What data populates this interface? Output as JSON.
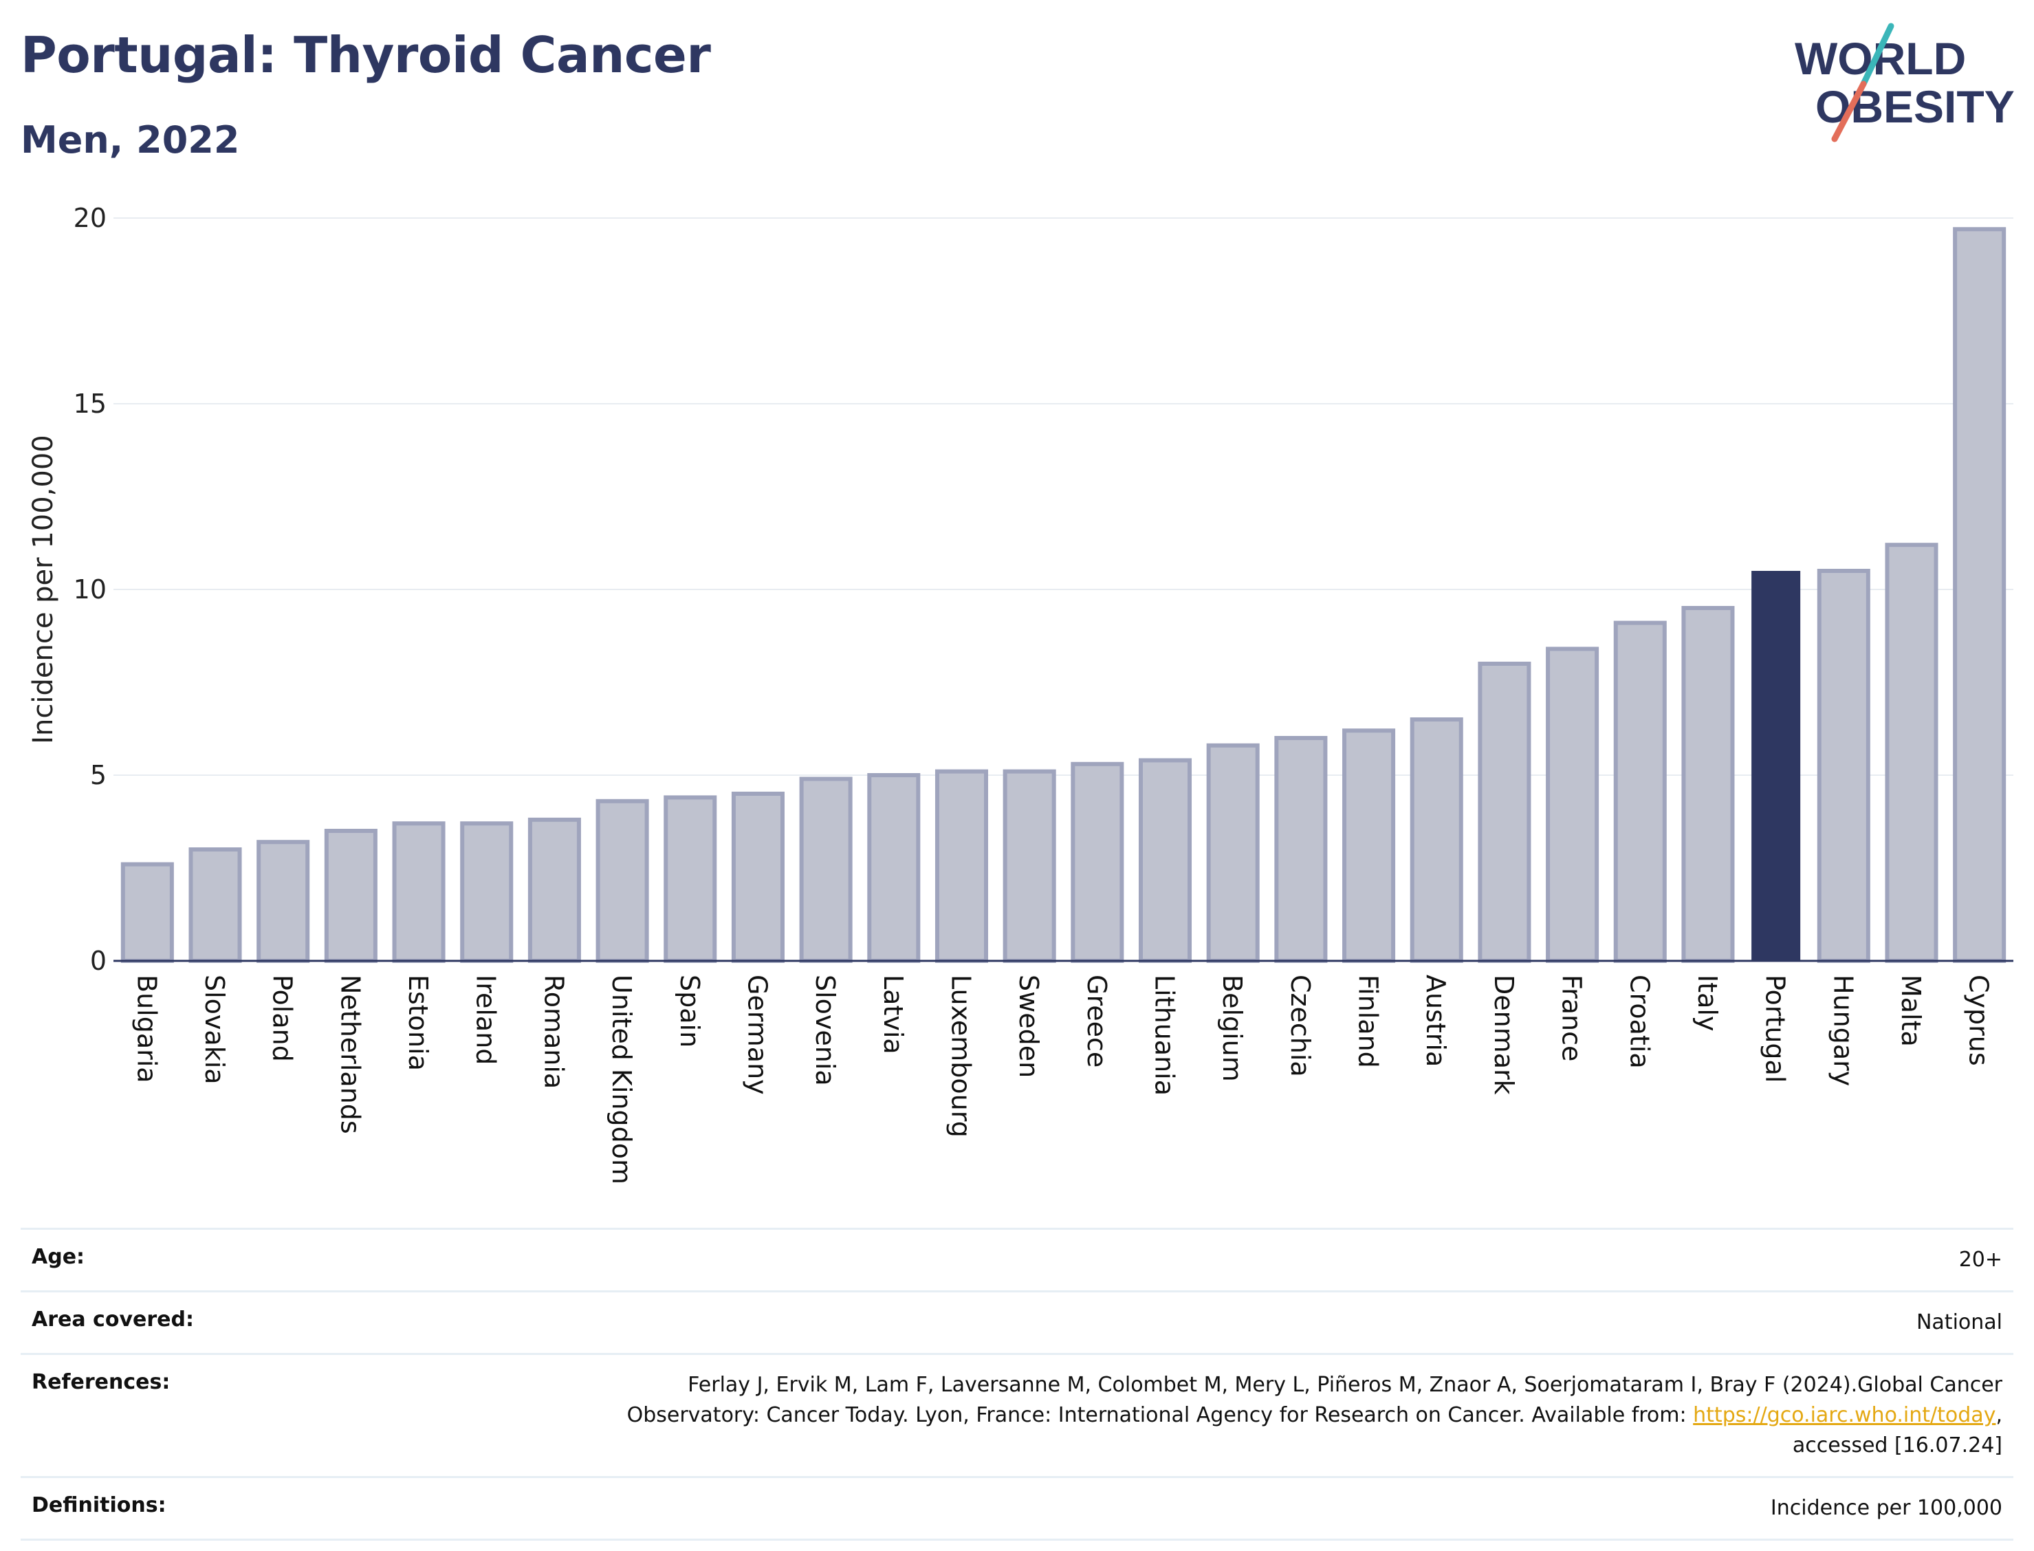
{
  "header": {
    "title": "Portugal: Thyroid Cancer",
    "subtitle": "Men, 2022"
  },
  "logo": {
    "line1": "WORLD",
    "line2": "OBESITY",
    "text_color": "#2e3761",
    "slash_colors": [
      "#3bb6b9",
      "#e36e5a"
    ]
  },
  "chart_data": {
    "type": "bar",
    "title": "",
    "xlabel": "",
    "ylabel": "Incidence per 100,000",
    "ylim": [
      0,
      20
    ],
    "yticks": [
      0,
      5,
      10,
      15,
      20
    ],
    "grid": true,
    "highlight": "Portugal",
    "colors": {
      "default_fill": "#bfc2cf",
      "default_stroke": "#9fa4bd",
      "highlight_fill": "#2e3761"
    },
    "categories": [
      "Bulgaria",
      "Slovakia",
      "Poland",
      "Netherlands",
      "Estonia",
      "Ireland",
      "Romania",
      "United Kingdom",
      "Spain",
      "Germany",
      "Slovenia",
      "Latvia",
      "Luxembourg",
      "Sweden",
      "Greece",
      "Lithuania",
      "Belgium",
      "Czechia",
      "Finland",
      "Austria",
      "Denmark",
      "France",
      "Croatia",
      "Italy",
      "Portugal",
      "Hungary",
      "Malta",
      "Cyprus"
    ],
    "values": [
      2.6,
      3.0,
      3.2,
      3.5,
      3.7,
      3.7,
      3.8,
      4.3,
      4.4,
      4.5,
      4.9,
      5.0,
      5.1,
      5.1,
      5.3,
      5.4,
      5.8,
      6.0,
      6.2,
      6.5,
      8.0,
      8.4,
      9.1,
      9.5,
      10.5,
      10.5,
      11.2,
      19.7
    ]
  },
  "meta": {
    "age_label": "Age:",
    "age_value": "20+",
    "area_label": "Area covered:",
    "area_value": "National",
    "references_label": "References:",
    "references_text": "Ferlay J, Ervik M, Lam F, Laversanne M, Colombet M, Mery L, Piñeros M, Znaor A, Soerjomataram I, Bray F (2024).Global Cancer Observatory: Cancer Today. Lyon, France: International Agency for Research on Cancer. Available from: ",
    "references_link": "https://gco.iarc.who.int/today",
    "references_suffix": ", accessed [16.07.24]",
    "definitions_label": "Definitions:",
    "definitions_value": "Incidence per 100,000"
  }
}
